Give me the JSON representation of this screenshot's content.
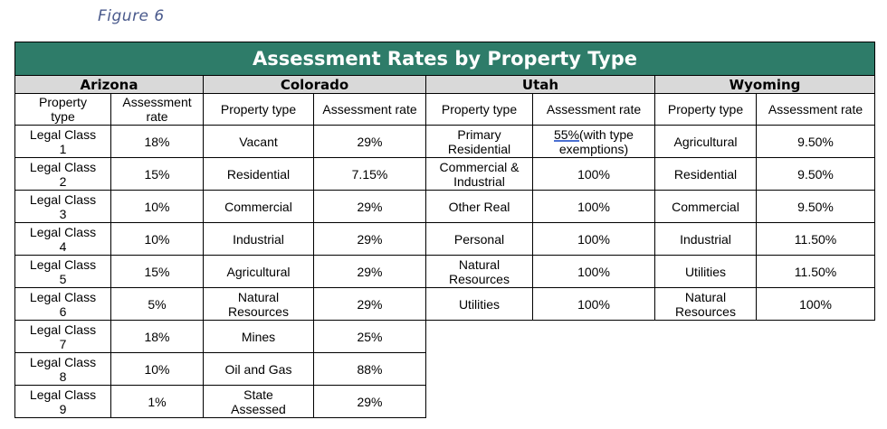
{
  "caption": "Figure 6",
  "table": {
    "title": "Assessment Rates by Property Type",
    "states": [
      "Arizona",
      "Colorado",
      "Utah",
      "Wyoming"
    ],
    "columns": {
      "arizona": [
        "Property\ntype",
        "Assessment\nrate"
      ],
      "colorado": [
        "Property type",
        "Assessment rate"
      ],
      "utah": [
        "Property type",
        "Assessment rate"
      ],
      "wyoming": [
        "Property type",
        "Assessment rate"
      ]
    },
    "rows": [
      {
        "az_type": "Legal Class\n1",
        "az_rate": "18%",
        "co_type": "Vacant",
        "co_rate": "29%",
        "ut_type": "Primary\nResidential",
        "ut_rate_link": "55%",
        "ut_rate_rest": "(with type\nexemptions)",
        "wy_type": "Agricultural",
        "wy_rate": "9.50%"
      },
      {
        "az_type": "Legal Class\n2",
        "az_rate": "15%",
        "co_type": "Residential",
        "co_rate": "7.15%",
        "ut_type": "Commercial &\nIndustrial",
        "ut_rate": "100%",
        "wy_type": "Residential",
        "wy_rate": "9.50%"
      },
      {
        "az_type": "Legal Class\n3",
        "az_rate": "10%",
        "co_type": "Commercial",
        "co_rate": "29%",
        "ut_type": "Other Real",
        "ut_rate": "100%",
        "wy_type": "Commercial",
        "wy_rate": "9.50%"
      },
      {
        "az_type": "Legal Class\n4",
        "az_rate": "10%",
        "co_type": "Industrial",
        "co_rate": "29%",
        "ut_type": "Personal",
        "ut_rate": "100%",
        "wy_type": "Industrial",
        "wy_rate": "11.50%"
      },
      {
        "az_type": "Legal Class\n5",
        "az_rate": "15%",
        "co_type": "Agricultural",
        "co_rate": "29%",
        "ut_type": "Natural\nResources",
        "ut_rate": "100%",
        "wy_type": "Utilities",
        "wy_rate": "11.50%"
      },
      {
        "az_type": "Legal Class\n6",
        "az_rate": "5%",
        "co_type": "Natural\nResources",
        "co_rate": "29%",
        "ut_type": "Utilities",
        "ut_rate": "100%",
        "wy_type": "Natural\nResources",
        "wy_rate": "100%"
      },
      {
        "az_type": "Legal Class\n7",
        "az_rate": "18%",
        "co_type": "Mines",
        "co_rate": "25%"
      },
      {
        "az_type": "Legal Class\n8",
        "az_rate": "10%",
        "co_type": "Oil and Gas",
        "co_rate": "88%"
      },
      {
        "az_type": "Legal Class\n9",
        "az_rate": "1%",
        "co_type": "State\nAssessed",
        "co_rate": "29%"
      }
    ]
  }
}
